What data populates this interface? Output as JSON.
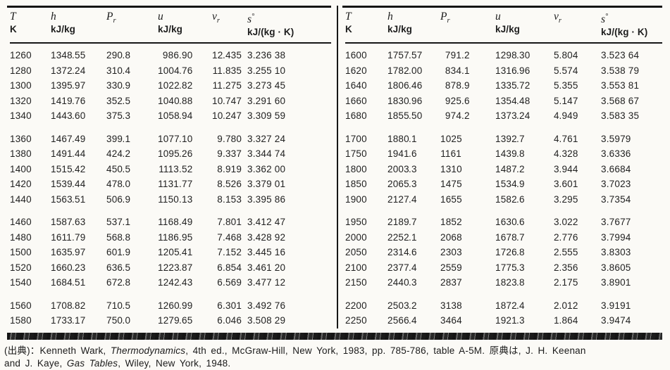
{
  "colors": {
    "paper": "#fbfaf6",
    "ink": "#1d1d1d"
  },
  "table": {
    "columns": [
      {
        "key": "T",
        "sym": "T",
        "unit": "K"
      },
      {
        "key": "h",
        "sym": "h",
        "unit": "kJ/kg"
      },
      {
        "key": "Pr",
        "sym": "P",
        "sub": "r",
        "unit": ""
      },
      {
        "key": "u",
        "sym": "u",
        "unit": "kJ/kg"
      },
      {
        "key": "vr",
        "sym": "v",
        "sub": "r",
        "unit": ""
      },
      {
        "key": "s",
        "sym": "s",
        "sup": "°",
        "unit": "kJ/(kg · K)"
      }
    ],
    "left_groups": [
      [
        [
          "1260",
          "1348.55",
          "290.8",
          "986.90",
          "12.435",
          "3.236 38"
        ],
        [
          "1280",
          "1372.24",
          "310.4",
          "1004.76",
          "11.835",
          "3.255 10"
        ],
        [
          "1300",
          "1395.97",
          "330.9",
          "1022.82",
          "11.275",
          "3.273 45"
        ],
        [
          "1320",
          "1419.76",
          "352.5",
          "1040.88",
          "10.747",
          "3.291 60"
        ],
        [
          "1340",
          "1443.60",
          "375.3",
          "1058.94",
          "10.247",
          "3.309 59"
        ]
      ],
      [
        [
          "1360",
          "1467.49",
          "399.1",
          "1077.10",
          "9.780",
          "3.327 24"
        ],
        [
          "1380",
          "1491.44",
          "424.2",
          "1095.26",
          "9.337",
          "3.344 74"
        ],
        [
          "1400",
          "1515.42",
          "450.5",
          "1113.52",
          "8.919",
          "3.362 00"
        ],
        [
          "1420",
          "1539.44",
          "478.0",
          "1131.77",
          "8.526",
          "3.379 01"
        ],
        [
          "1440",
          "1563.51",
          "506.9",
          "1150.13",
          "8.153",
          "3.395 86"
        ]
      ],
      [
        [
          "1460",
          "1587.63",
          "537.1",
          "1168.49",
          "7.801",
          "3.412 47"
        ],
        [
          "1480",
          "1611.79",
          "568.8",
          "1186.95",
          "7.468",
          "3.428 92"
        ],
        [
          "1500",
          "1635.97",
          "601.9",
          "1205.41",
          "7.152",
          "3.445 16"
        ],
        [
          "1520",
          "1660.23",
          "636.5",
          "1223.87",
          "6.854",
          "3.461 20"
        ],
        [
          "1540",
          "1684.51",
          "672.8",
          "1242.43",
          "6.569",
          "3.477 12"
        ]
      ],
      [
        [
          "1560",
          "1708.82",
          "710.5",
          "1260.99",
          "6.301",
          "3.492 76"
        ],
        [
          "1580",
          "1733.17",
          "750.0",
          "1279.65",
          "6.046",
          "3.508 29"
        ]
      ]
    ],
    "right_groups": [
      [
        [
          "1600",
          "1757.57",
          "791.2",
          "1298.30",
          "5.804",
          "3.523 64"
        ],
        [
          "1620",
          "1782.00",
          "834.1",
          "1316.96",
          "5.574",
          "3.538 79"
        ],
        [
          "1640",
          "1806.46",
          "878.9",
          "1335.72",
          "5.355",
          "3.553 81"
        ],
        [
          "1660",
          "1830.96",
          "925.6",
          "1354.48",
          "5.147",
          "3.568 67"
        ],
        [
          "1680",
          "1855.50",
          "974.2",
          "1373.24",
          "4.949",
          "3.583 35"
        ]
      ],
      [
        [
          "1700",
          "1880.1",
          "1025",
          "1392.7",
          "4.761",
          "3.5979"
        ],
        [
          "1750",
          "1941.6",
          "1161",
          "1439.8",
          "4.328",
          "3.6336"
        ],
        [
          "1800",
          "2003.3",
          "1310",
          "1487.2",
          "3.944",
          "3.6684"
        ],
        [
          "1850",
          "2065.3",
          "1475",
          "1534.9",
          "3.601",
          "3.7023"
        ],
        [
          "1900",
          "2127.4",
          "1655",
          "1582.6",
          "3.295",
          "3.7354"
        ]
      ],
      [
        [
          "1950",
          "2189.7",
          "1852",
          "1630.6",
          "3.022",
          "3.7677"
        ],
        [
          "2000",
          "2252.1",
          "2068",
          "1678.7",
          "2.776",
          "3.7994"
        ],
        [
          "2050",
          "2314.6",
          "2303",
          "1726.8",
          "2.555",
          "3.8303"
        ],
        [
          "2100",
          "2377.4",
          "2559",
          "1775.3",
          "2.356",
          "3.8605"
        ],
        [
          "2150",
          "2440.3",
          "2837",
          "1823.8",
          "2.175",
          "3.8901"
        ]
      ],
      [
        [
          "2200",
          "2503.2",
          "3138",
          "1872.4",
          "2.012",
          "3.9191"
        ],
        [
          "2250",
          "2566.4",
          "3464",
          "1921.3",
          "1.864",
          "3.9474"
        ]
      ]
    ]
  },
  "footer": {
    "line1_pre": "(出典)：Kenneth Wark, ",
    "line1_italic": "Thermodynamics",
    "line1_post": ", 4th ed., McGraw-Hill, New York, 1983, pp. 785-786, table A-5M. 原典は, J. H. Keenan",
    "line2_pre": "and J. Kaye, ",
    "line2_italic": "Gas Tables",
    "line2_post": ", Wiley, New York, 1948."
  }
}
